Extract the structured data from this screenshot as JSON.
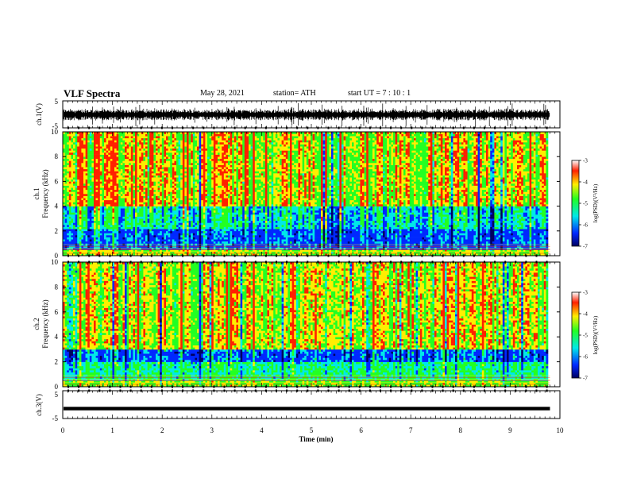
{
  "header": {
    "title": "VLF Spectra",
    "date": "May 28, 2021",
    "station": "station= ATH",
    "start_ut": "start  UT =   7 : 10 : 1"
  },
  "colors": {
    "red": "#ff2000",
    "yellow": "#ffee00",
    "green": "#22ff22",
    "cyan": "#00e8e8",
    "blue": "#0028ff",
    "navy": "#000060",
    "waveform": "#000000"
  },
  "chart_data": [
    {
      "type": "line",
      "panel": "ch1 waveform",
      "ylabel": "ch.1(V)",
      "ylim": [
        -5,
        5
      ],
      "y_ticks": [
        "5",
        "-5"
      ],
      "xlim": [
        0,
        10
      ],
      "description_values": {
        "typical_amplitude_V": [
          -1.5,
          1.5
        ],
        "max_spike_V": 4.5
      },
      "x_end_min": 9.8
    },
    {
      "type": "heatmap",
      "panel": "ch1 spectrogram",
      "ylabel": "ch.1\nFrequency (kHz)",
      "ylim": [
        0,
        10
      ],
      "y_ticks": [
        "0",
        "2",
        "4",
        "6",
        "8",
        "10"
      ],
      "xlim": [
        0,
        10
      ],
      "x_end_min": 9.8,
      "colorbar": {
        "label": "log(PSD)(V²/Hz)",
        "range": [
          -7,
          -3
        ],
        "ticks": [
          "-3",
          "-4",
          "-5",
          "-6",
          "-7"
        ]
      },
      "bands_kHz": [
        {
          "range": [
            0,
            0.5
          ],
          "level": -4.2
        },
        {
          "range": [
            0.5,
            2.2
          ],
          "level": -5.8
        },
        {
          "range": [
            2.2,
            4.0
          ],
          "level": -5.2
        },
        {
          "range": [
            4.0,
            10.0
          ],
          "level": -4.0
        }
      ]
    },
    {
      "type": "heatmap",
      "panel": "ch2 spectrogram",
      "ylabel": "ch.2\nFrequency (kHz)",
      "ylim": [
        0,
        10
      ],
      "y_ticks": [
        "0",
        "2",
        "4",
        "6",
        "8",
        "10"
      ],
      "xlim": [
        0,
        10
      ],
      "x_end_min": 9.8,
      "colorbar": {
        "label": "log(PSD)(V²/Hz)",
        "range": [
          -7,
          -3
        ],
        "ticks": [
          "-3",
          "-4",
          "-5",
          "-6",
          "-7"
        ]
      },
      "bands_kHz": [
        {
          "range": [
            0,
            0.5
          ],
          "level": -4.3
        },
        {
          "range": [
            0.5,
            2.0
          ],
          "level": -5.0
        },
        {
          "range": [
            2.0,
            3.0
          ],
          "level": -5.8
        },
        {
          "range": [
            3.0,
            10.0
          ],
          "level": -4.1
        }
      ]
    },
    {
      "type": "line",
      "panel": "ch3 waveform",
      "ylabel": "ch.3(V)",
      "ylim": [
        -5,
        5
      ],
      "y_ticks": [
        "5",
        "-5"
      ],
      "xlim": [
        0,
        10
      ],
      "x_end_min": 9.8,
      "description_values": {
        "level_V": [
          -0.8,
          -1.2
        ]
      },
      "xlabel": "Time (min)",
      "x_ticks": [
        "0",
        "1",
        "2",
        "3",
        "4",
        "5",
        "6",
        "7",
        "8",
        "9",
        "10"
      ]
    }
  ]
}
